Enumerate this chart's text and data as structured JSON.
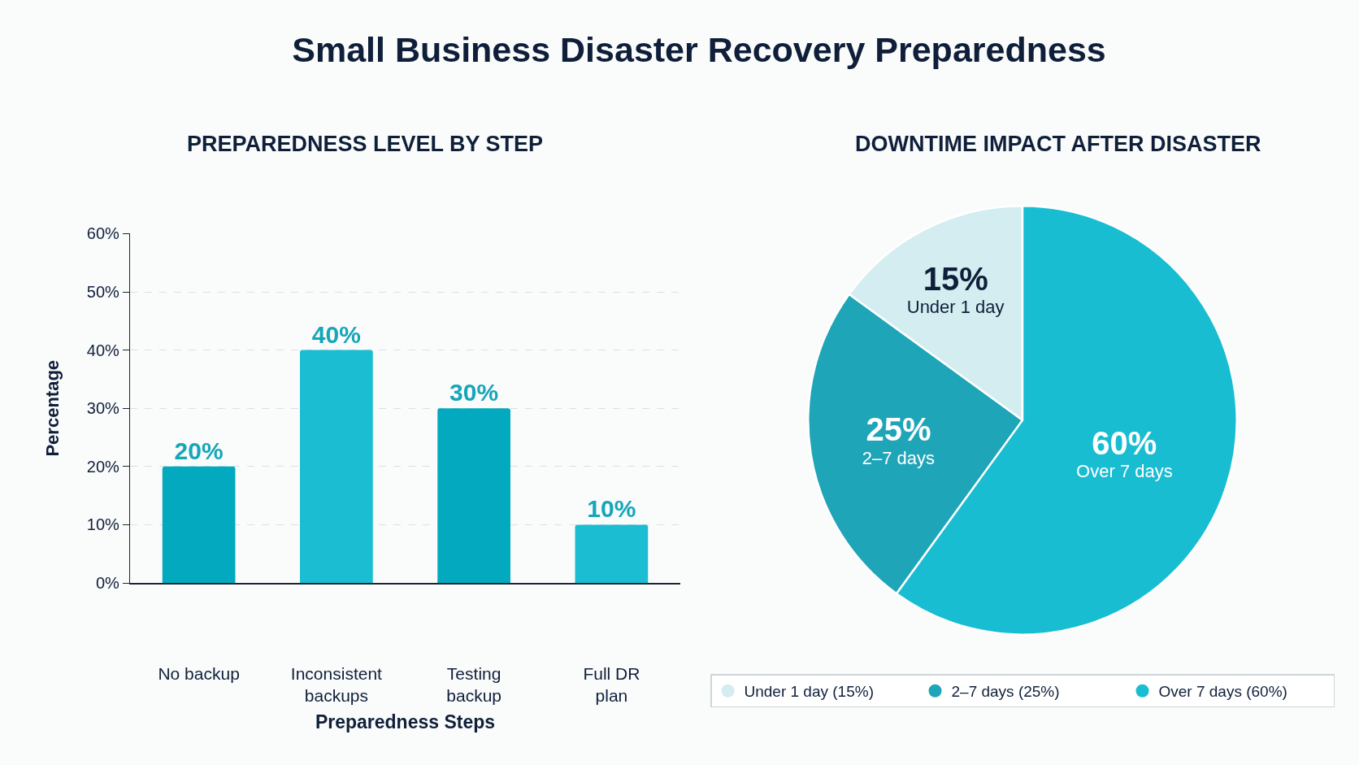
{
  "chart_data": [
    {
      "type": "bar",
      "title": "Small Business Disaster Recovery Preparedness",
      "subtitle": "PREPAREDNESS LEVEL BY STEP",
      "xlabel": "Preparedness Steps",
      "ylabel": "Percentage",
      "categories": [
        "No backup",
        "Inconsistent backups",
        "Testing backup",
        "Full DR plan"
      ],
      "values": [
        20,
        40,
        30,
        10
      ],
      "colors": [
        "#03aabf",
        "#1abdd2",
        "#03aabf",
        "#1abdd2"
      ],
      "value_labels": [
        "20%",
        "40%",
        "30%",
        "10%"
      ],
      "ylim": [
        0,
        60
      ],
      "yticks": [
        {
          "value": 0,
          "label": "0%"
        },
        {
          "value": 10,
          "label": "10%"
        },
        {
          "value": 20,
          "label": "20%"
        },
        {
          "value": 30,
          "label": "30%"
        },
        {
          "value": 40,
          "label": "40%"
        },
        {
          "value": 50,
          "label": "50%"
        },
        {
          "value": 60,
          "label": "60%"
        }
      ],
      "grid": "y"
    },
    {
      "type": "pie",
      "title": "DOWNTIME IMPACT AFTER DISASTER",
      "categories": [
        "Under 1 day (15%)",
        "2–7 days (25%)",
        "Over 7 days (60%)"
      ],
      "values": [
        15,
        25,
        60
      ],
      "colors": [
        "#d3edf0",
        "#1fa5b8",
        "#19bdd2"
      ],
      "value_labels": [
        "15%\nUnder 1 day",
        "25%\n2–7 days",
        "60%\nOver 7 days"
      ],
      "legend": "bottom"
    }
  ]
}
